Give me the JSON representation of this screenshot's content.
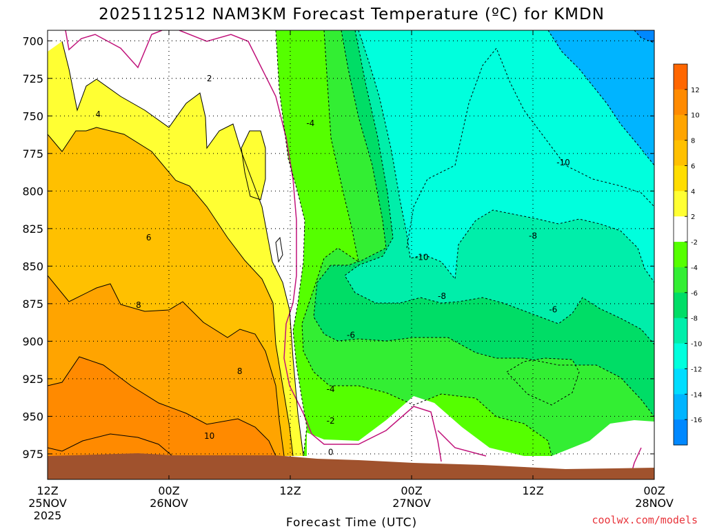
{
  "chart_data": {
    "type": "heatmap",
    "title": "2025112512 NAM3KM Forecast Temperature (ºC) for KMDN",
    "xlabel": "Forecast Time (UTC)",
    "ylabel": "",
    "y_axis": {
      "unit": "hPa",
      "ticks": [
        700,
        725,
        750,
        775,
        800,
        825,
        850,
        875,
        900,
        925,
        950,
        975
      ],
      "range": [
        992,
        693
      ]
    },
    "x_axis": {
      "unit": "forecast hour",
      "range": [
        0,
        60
      ],
      "ticks": [
        {
          "hour": 0,
          "line1": "12Z",
          "line2": "25NOV",
          "line3": "2025"
        },
        {
          "hour": 12,
          "line1": "00Z",
          "line2": "26NOV",
          "line3": ""
        },
        {
          "hour": 24,
          "line1": "12Z",
          "line2": "",
          "line3": ""
        },
        {
          "hour": 36,
          "line1": "00Z",
          "line2": "27NOV",
          "line3": ""
        },
        {
          "hour": 48,
          "line1": "12Z",
          "line2": "",
          "line3": ""
        },
        {
          "hour": 60,
          "line1": "00Z",
          "line2": "28NOV",
          "line3": ""
        }
      ]
    },
    "colorbar": {
      "labels": [
        "12",
        "10",
        "8",
        "6",
        "4",
        "2",
        "-2",
        "-4",
        "-6",
        "-8",
        "-10",
        "-12",
        "-14",
        "-16"
      ],
      "colors": [
        "#ff6600",
        "#ff8a00",
        "#ffa400",
        "#ffc000",
        "#ffdd00",
        "#ffff33",
        "#ffffff",
        "#55ff00",
        "#33ee33",
        "#00dd66",
        "#00eeaa",
        "#00ffdd",
        "#00ddff",
        "#00b4ff",
        "#0088ff"
      ]
    },
    "contour_labels": [
      {
        "text": "2",
        "hour": 16,
        "pressure": 725
      },
      {
        "text": "4",
        "hour": 5,
        "pressure": 749
      },
      {
        "text": "6",
        "hour": 10,
        "pressure": 831
      },
      {
        "text": "8",
        "hour": 9,
        "pressure": 876
      },
      {
        "text": "8",
        "hour": 19,
        "pressure": 920
      },
      {
        "text": "10",
        "hour": 16,
        "pressure": 963
      },
      {
        "text": "-4",
        "hour": 26,
        "pressure": 755
      },
      {
        "text": "-4",
        "hour": 28,
        "pressure": 932
      },
      {
        "text": "-2",
        "hour": 28,
        "pressure": 953
      },
      {
        "text": "0",
        "hour": 28,
        "pressure": 974
      },
      {
        "text": "-6",
        "hour": 30,
        "pressure": 896
      },
      {
        "text": "-10",
        "hour": 37,
        "pressure": 844
      },
      {
        "text": "-8",
        "hour": 39,
        "pressure": 870
      },
      {
        "text": "-10",
        "hour": 51,
        "pressure": 781
      },
      {
        "text": "-8",
        "hour": 48,
        "pressure": 830
      },
      {
        "text": "-6",
        "hour": 50,
        "pressure": 879
      }
    ],
    "regions": [
      {
        "temp_range": "8 to 12",
        "color": "#ff8a00"
      },
      {
        "temp_range": "6 to 8",
        "color": "#ffa400"
      },
      {
        "temp_range": "4 to 6",
        "color": "#ffc000"
      },
      {
        "temp_range": "2 to 4",
        "color": "#ffff33"
      },
      {
        "temp_range": "-2 to 2",
        "color": "#ffffff"
      },
      {
        "temp_range": "-4 to -2",
        "color": "#55ff00"
      },
      {
        "temp_range": "-6 to -4",
        "color": "#33ee33"
      },
      {
        "temp_range": "-8 to -6",
        "color": "#00dd66"
      },
      {
        "temp_range": "-10 to -8",
        "color": "#00eeaa"
      },
      {
        "temp_range": "-14 to -10",
        "color": "#00ffdd"
      },
      {
        "temp_range": "-16 to -14",
        "color": "#00b4ff"
      }
    ],
    "grid": true
  },
  "credit": "coolwx.com/models"
}
